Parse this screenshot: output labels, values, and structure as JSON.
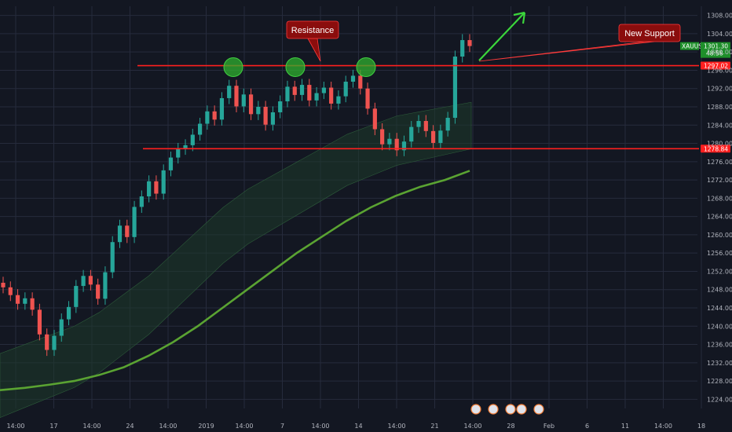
{
  "chart_data": {
    "type": "line",
    "symbol": "XAUUSD",
    "timeframe_note": "intraday candlestick chart of gold",
    "y_ticks": [
      "1308.00",
      "1304.00",
      "1300.00",
      "1296.00",
      "1292.00",
      "1288.00",
      "1284.00",
      "1280.00",
      "1276.00",
      "1272.00",
      "1268.00",
      "1264.00",
      "1260.00",
      "1256.00",
      "1252.00",
      "1248.00",
      "1244.00",
      "1240.00",
      "1236.00",
      "1232.00",
      "1228.00",
      "1224.00"
    ],
    "ylim": [
      1222,
      1310
    ],
    "x_ticks": [
      "14:00",
      "17",
      "14:00",
      "24",
      "14:00",
      "2019",
      "14:00",
      "7",
      "14:00",
      "14",
      "14:00",
      "21",
      "14:00",
      "28",
      "Feb",
      "6",
      "11",
      "14:00",
      "18"
    ],
    "series": [
      {
        "style": "candles",
        "close": [
          1248.5,
          1246.8,
          1244.9,
          1246.1,
          1243.6,
          1238.2,
          1234.8,
          1237.9,
          1241.5,
          1244.2,
          1248.8,
          1251.0,
          1249.1,
          1246.0,
          1251.8,
          1258.4,
          1262.0,
          1259.5,
          1266.1,
          1268.4,
          1271.7,
          1269.0,
          1274.1,
          1276.9,
          1278.8,
          1279.6,
          1281.9,
          1284.3,
          1287.0,
          1285.2,
          1289.9,
          1292.6,
          1288.1,
          1290.7,
          1286.4,
          1288.0,
          1284.1,
          1286.8,
          1289.2,
          1292.4,
          1290.6,
          1292.8,
          1289.4,
          1291.0,
          1292.2,
          1288.7,
          1290.3,
          1293.5,
          1294.8,
          1292.0,
          1287.6,
          1283.1,
          1279.8,
          1281.0,
          1278.5,
          1280.4,
          1283.6,
          1284.9,
          1282.7,
          1280.1,
          1282.8,
          1285.6,
          1299.0,
          1302.6,
          1301.3
        ]
      },
      {
        "style": "moving-average-green",
        "values": [
          1226,
          1226.5,
          1227.2,
          1228.0,
          1229.3,
          1231.0,
          1233.5,
          1236.5,
          1240.0,
          1244.0,
          1248.0,
          1252.0,
          1256.0,
          1259.5,
          1263.0,
          1266.0,
          1268.5,
          1270.5,
          1272.0,
          1274.0
        ]
      },
      {
        "style": "ichimoku-cloud-span",
        "values": [
          1234,
          1236,
          1238,
          1240,
          1243,
          1247,
          1251,
          1256,
          1261,
          1266,
          1270,
          1273,
          1276,
          1279,
          1282,
          1284,
          1286,
          1287,
          1288,
          1289
        ]
      }
    ],
    "horizontal_levels": [
      {
        "value": 1297.02,
        "label": "1297.02",
        "color": "#ff1f1f"
      },
      {
        "value": 1278.84,
        "label": "1278.84",
        "color": "#ff1f1f"
      }
    ],
    "last_price": {
      "label": "XAUUSD",
      "value": "1301.30",
      "countdown": "48:58"
    },
    "annotations": [
      {
        "text": "Resistance",
        "kind": "callout"
      },
      {
        "text": "New Support",
        "kind": "callout"
      }
    ],
    "colors": {
      "background": "#131722",
      "grid": "#262b3c",
      "up_candle": "#26a69a",
      "down_candle": "#ef5350",
      "level_line": "#ff1f1f",
      "callout_bg": "#8a0d0d",
      "callout_border": "#ff3b3b",
      "highlight_ellipse": "#2fb02f",
      "trend_arrow": "#3bd63b",
      "ma_line": "#5aa332",
      "last_price_tag": "#1e8f2a"
    },
    "grid": true
  }
}
